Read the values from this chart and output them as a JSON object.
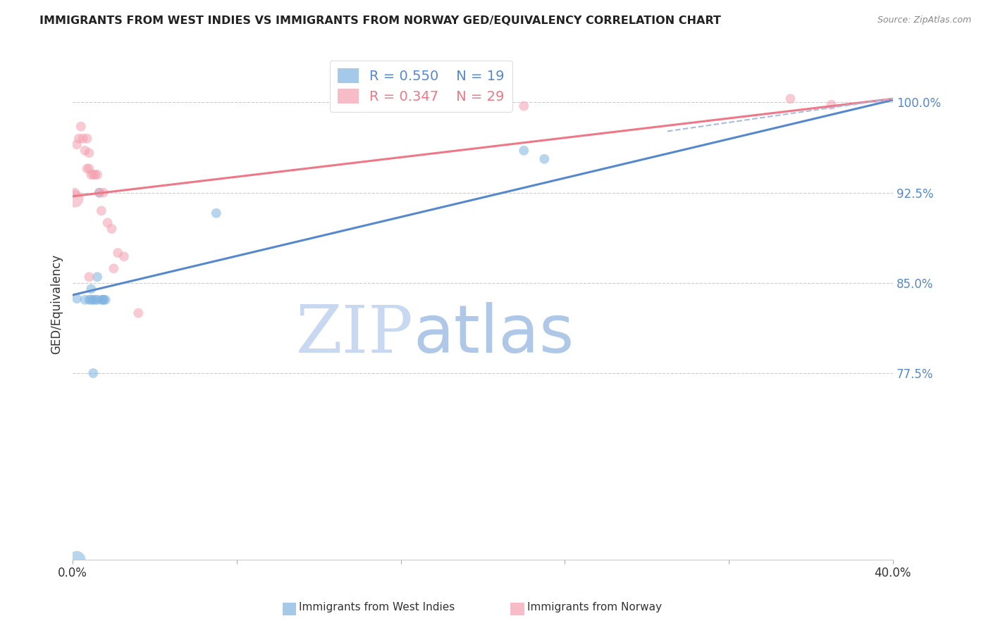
{
  "title": "IMMIGRANTS FROM WEST INDIES VS IMMIGRANTS FROM NORWAY GED/EQUIVALENCY CORRELATION CHART",
  "source": "Source: ZipAtlas.com",
  "ylabel": "GED/Equivalency",
  "ytick_labels": [
    "77.5%",
    "85.0%",
    "92.5%",
    "100.0%"
  ],
  "ytick_values": [
    0.775,
    0.85,
    0.925,
    1.0
  ],
  "xlim": [
    0.0,
    0.4
  ],
  "ylim": [
    0.62,
    1.045
  ],
  "blue_R": 0.55,
  "blue_N": 19,
  "pink_R": 0.347,
  "pink_N": 29,
  "blue_color": "#7EB3E0",
  "pink_color": "#F4A0B0",
  "blue_line_color": "#5588CC",
  "pink_line_color": "#EE7788",
  "watermark_zip": "ZIP",
  "watermark_atlas": "atlas",
  "watermark_color_zip": "#C8D8F0",
  "watermark_color_atlas": "#B0C8E8",
  "blue_scatter_x": [
    0.002,
    0.006,
    0.008,
    0.009,
    0.01,
    0.011,
    0.012,
    0.013,
    0.014,
    0.015,
    0.015,
    0.016,
    0.002,
    0.012,
    0.009,
    0.01,
    0.22,
    0.23,
    0.07
  ],
  "blue_scatter_y": [
    0.837,
    0.836,
    0.836,
    0.836,
    0.836,
    0.836,
    0.836,
    0.925,
    0.836,
    0.836,
    0.836,
    0.836,
    0.62,
    0.855,
    0.845,
    0.775,
    0.96,
    0.953,
    0.908
  ],
  "blue_scatter_sizes": [
    100,
    100,
    100,
    100,
    100,
    100,
    100,
    100,
    100,
    100,
    100,
    100,
    320,
    100,
    100,
    100,
    100,
    100,
    100
  ],
  "pink_scatter_x": [
    0.001,
    0.002,
    0.003,
    0.004,
    0.005,
    0.006,
    0.007,
    0.007,
    0.008,
    0.008,
    0.009,
    0.01,
    0.011,
    0.012,
    0.013,
    0.014,
    0.015,
    0.017,
    0.019,
    0.02,
    0.022,
    0.025,
    0.032,
    0.001,
    0.008,
    0.14,
    0.22,
    0.35,
    0.37
  ],
  "pink_scatter_y": [
    0.925,
    0.965,
    0.97,
    0.98,
    0.97,
    0.96,
    0.97,
    0.945,
    0.958,
    0.945,
    0.94,
    0.94,
    0.94,
    0.94,
    0.925,
    0.91,
    0.925,
    0.9,
    0.895,
    0.862,
    0.875,
    0.872,
    0.825,
    0.92,
    0.855,
    0.997,
    0.997,
    1.003,
    0.998
  ],
  "pink_scatter_sizes": [
    100,
    100,
    100,
    100,
    100,
    100,
    100,
    100,
    100,
    100,
    100,
    100,
    100,
    100,
    100,
    100,
    100,
    100,
    100,
    100,
    100,
    100,
    100,
    320,
    100,
    100,
    100,
    100,
    100
  ],
  "blue_line_x": [
    0.0,
    0.4
  ],
  "blue_line_y": [
    0.84,
    1.002
  ],
  "pink_line_x": [
    0.0,
    0.4
  ],
  "pink_line_y": [
    0.922,
    1.003
  ],
  "dashed_line_x": [
    0.29,
    0.4
  ],
  "dashed_line_y": [
    0.976,
    1.003
  ]
}
